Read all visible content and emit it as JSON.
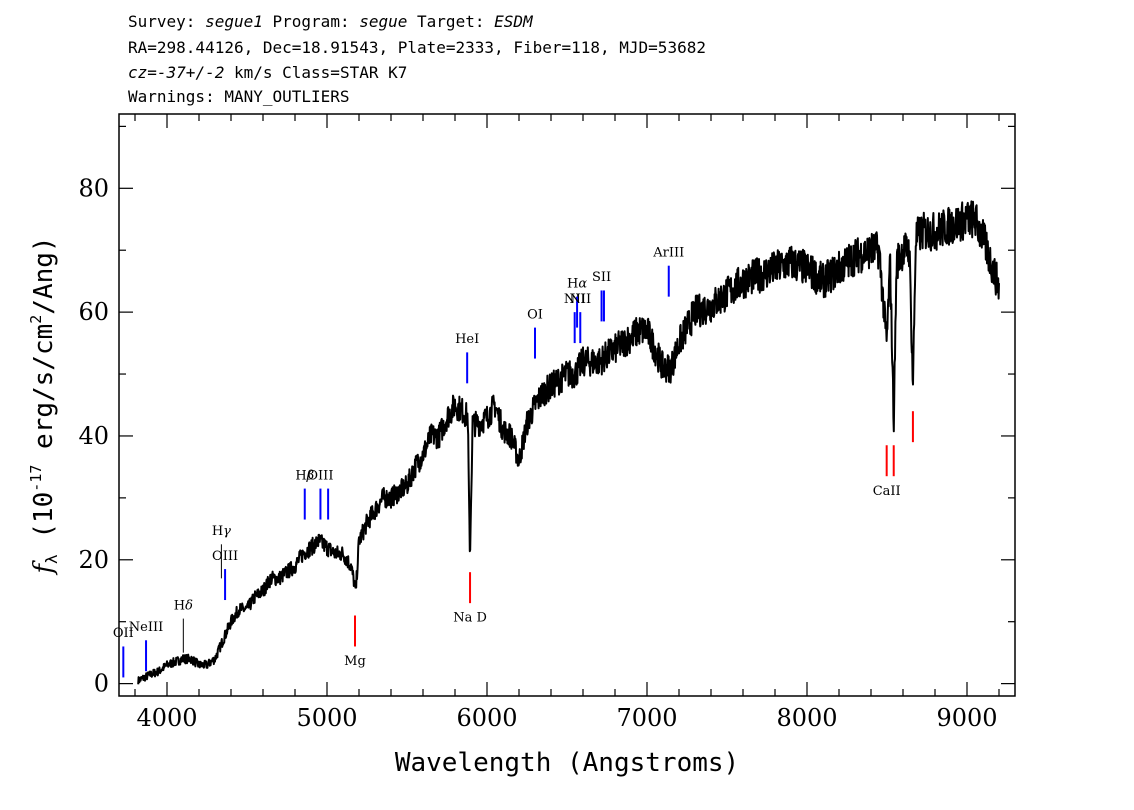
{
  "header": {
    "line1": {
      "survey_label": "Survey:",
      "survey": "segue1",
      "program_label": "Program:",
      "program": "segue",
      "target_label": "Target:",
      "target": "ESDM"
    },
    "line2": "RA=298.44126, Dec=18.91543, Plate=2333, Fiber=118, MJD=53682",
    "line3": {
      "cz_label": "cz=",
      "cz_value": "-37+/-2",
      "cz_rest": " km/s Class=STAR K7"
    },
    "line4": "Warnings: MANY_OUTLIERS"
  },
  "chart_data": {
    "type": "line",
    "title": "",
    "xlabel": "Wavelength (Angstroms)",
    "ylabel": "f_λ (10^-17 erg/s/cm^2/Ang)",
    "xlim": [
      3700,
      9300
    ],
    "ylim": [
      -2,
      92
    ],
    "x_ticks": [
      4000,
      5000,
      6000,
      7000,
      8000,
      9000
    ],
    "y_ticks": [
      0,
      20,
      40,
      60,
      80
    ],
    "grid": false,
    "colors": {
      "spectrum": "#000000",
      "emission": "#0000ff",
      "absorption": "#ff0000",
      "blended": "#000000"
    },
    "series": [
      {
        "x": [
          3820,
          3900,
          3950,
          4000,
          4050,
          4100,
          4150,
          4200,
          4250,
          4300,
          4350,
          4400,
          4450,
          4500,
          4550,
          4600,
          4650,
          4700,
          4750,
          4800,
          4850,
          4900,
          4950,
          5000,
          5050,
          5100,
          5150,
          5180,
          5200,
          5250,
          5300,
          5350,
          5400,
          5450,
          5500,
          5550,
          5600,
          5650,
          5700,
          5750,
          5800,
          5850,
          5880,
          5893,
          5910,
          5950,
          6000,
          6050,
          6100,
          6150,
          6200,
          6250,
          6300,
          6350,
          6400,
          6450,
          6500,
          6550,
          6600,
          6650,
          6700,
          6750,
          6800,
          6850,
          6900,
          6950,
          7000,
          7050,
          7100,
          7150,
          7200,
          7300,
          7400,
          7500,
          7600,
          7700,
          7800,
          7900,
          8000,
          8100,
          8200,
          8300,
          8400,
          8450,
          8498,
          8520,
          8542,
          8560,
          8600,
          8640,
          8662,
          8680,
          8720,
          8800,
          8900,
          9000,
          9050,
          9100,
          9150,
          9200
        ],
        "y": [
          0.5,
          1.5,
          2,
          3,
          3.5,
          4,
          4,
          3,
          3,
          4,
          7,
          10,
          12,
          12,
          14,
          15,
          17,
          17,
          18,
          19,
          21,
          22,
          23,
          22,
          21,
          21,
          19,
          15,
          23,
          26,
          28,
          30,
          30,
          31,
          32,
          35,
          37,
          40,
          40,
          43,
          45,
          44,
          43,
          20,
          42,
          42,
          43,
          45,
          41,
          40,
          36,
          42,
          45,
          47,
          48,
          49,
          50,
          50,
          52,
          52,
          52,
          53,
          54,
          55,
          56,
          57,
          57,
          54,
          51,
          51,
          55,
          60,
          61,
          63,
          65,
          66,
          67,
          68,
          67,
          65,
          67,
          69,
          70,
          70,
          55,
          68,
          42,
          68,
          70,
          70,
          48,
          72,
          73,
          73,
          74,
          75,
          75,
          72,
          68,
          64
        ]
      }
    ],
    "lines": [
      {
        "label": "OII",
        "x": 3727,
        "kind": "emission",
        "y0": 1,
        "y1": 6,
        "label_y": 7.5
      },
      {
        "label": "NeIII",
        "x": 3869,
        "kind": "emission",
        "y0": 2,
        "y1": 7,
        "label_y": 8.5
      },
      {
        "label": "Hδ",
        "x": 4102,
        "kind": "blended",
        "y0": 5,
        "y1": 10.5,
        "label_y": 12
      },
      {
        "label": "Hγ",
        "x": 4340,
        "kind": "blended",
        "y0": 17,
        "y1": 22.5,
        "label_y": 24
      },
      {
        "label": "OIII",
        "x": 4363,
        "kind": "emission",
        "y0": 13.5,
        "y1": 18.5,
        "label_y": 20
      },
      {
        "label": "Hβ",
        "x": 4861,
        "kind": "emission",
        "y0": 26.5,
        "y1": 31.5,
        "label_y": 33
      },
      {
        "label": "OIII",
        "x": 4959,
        "kind": "emission",
        "y0": 26.5,
        "y1": 31.5,
        "label_y": 33
      },
      {
        "label": "",
        "x": 5007,
        "kind": "emission",
        "y0": 26.5,
        "y1": 31.5,
        "label_y": 33
      },
      {
        "label": "Mg",
        "x": 5175,
        "kind": "absorption",
        "y0": 6,
        "y1": 11,
        "label_y": 3
      },
      {
        "label": "HeI",
        "x": 5876,
        "kind": "emission",
        "y0": 48.5,
        "y1": 53.5,
        "label_y": 55
      },
      {
        "label": "Na D",
        "x": 5894,
        "kind": "absorption",
        "y0": 13,
        "y1": 18,
        "label_y": 10
      },
      {
        "label": "OI",
        "x": 6300,
        "kind": "emission",
        "y0": 52.5,
        "y1": 57.5,
        "label_y": 59
      },
      {
        "label": "NII",
        "x": 6548,
        "kind": "emission",
        "y0": 55,
        "y1": 60,
        "label_y": 61.5
      },
      {
        "label": "Hα",
        "x": 6563,
        "kind": "emission",
        "y0": 57.5,
        "y1": 62.5,
        "label_y": 64
      },
      {
        "label": "NII",
        "x": 6583,
        "kind": "emission",
        "y0": 55,
        "y1": 60,
        "label_y": 61.5
      },
      {
        "label": "SII",
        "x": 6716,
        "kind": "emission",
        "y0": 58.5,
        "y1": 63.5,
        "label_y": 65
      },
      {
        "label": "",
        "x": 6731,
        "kind": "emission",
        "y0": 58.5,
        "y1": 63.5,
        "label_y": 65
      },
      {
        "label": "ArIII",
        "x": 7136,
        "kind": "emission",
        "y0": 62.5,
        "y1": 67.5,
        "label_y": 69
      },
      {
        "label": "CaII",
        "x": 8498,
        "kind": "absorption",
        "y0": 33.5,
        "y1": 38.5,
        "label_y": 30.5
      },
      {
        "label": "",
        "x": 8542,
        "kind": "absorption",
        "y0": 33.5,
        "y1": 38.5,
        "label_y": 30.5
      },
      {
        "label": "",
        "x": 8662,
        "kind": "absorption",
        "y0": 39,
        "y1": 44,
        "label_y": 30.5
      }
    ]
  }
}
